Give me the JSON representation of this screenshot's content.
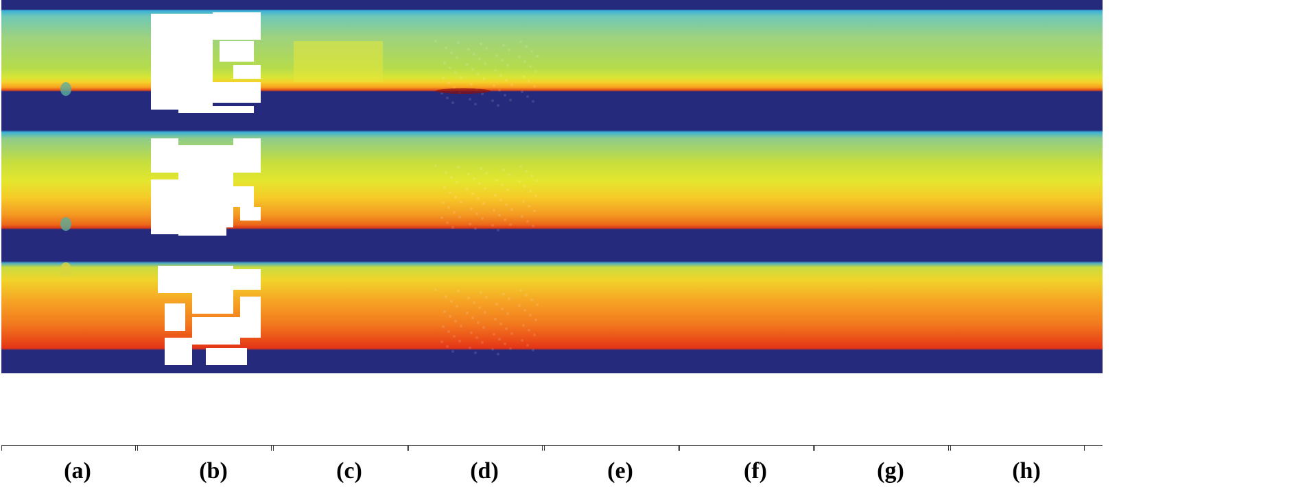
{
  "figure": {
    "columns": [
      {
        "id": "a",
        "label": "a",
        "masked": false,
        "artifact": "defect"
      },
      {
        "id": "b",
        "label": "b",
        "masked": true,
        "artifact": "none"
      },
      {
        "id": "c",
        "label": "c",
        "masked": false,
        "artifact": "patch"
      },
      {
        "id": "d",
        "label": "d",
        "masked": false,
        "artifact": "texture"
      },
      {
        "id": "e",
        "label": "e",
        "masked": false,
        "artifact": "smooth"
      },
      {
        "id": "f",
        "label": "f",
        "masked": false,
        "artifact": "smooth"
      },
      {
        "id": "g",
        "label": "g",
        "masked": false,
        "artifact": "smooth"
      },
      {
        "id": "h",
        "label": "h",
        "masked": false,
        "artifact": "smooth"
      }
    ],
    "rows": 3,
    "colormap": [
      "#2a2a7a",
      "#3ab0d8",
      "#7ed0a0",
      "#b8e04a",
      "#f0ee2a",
      "#f8b820",
      "#f06018",
      "#c01818"
    ],
    "colors": {
      "background_band": "#262a7c",
      "mask": "#ffffff",
      "separator": "#ffffff"
    }
  }
}
